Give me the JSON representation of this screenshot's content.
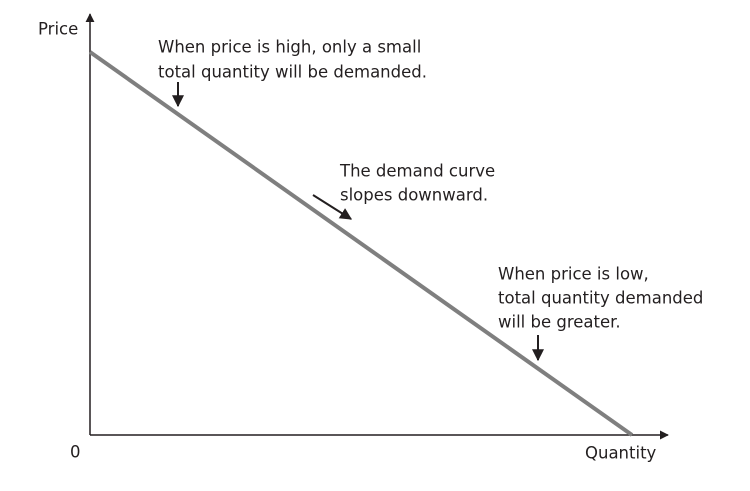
{
  "axes": {
    "y_label": "Price",
    "x_label": "Quantity",
    "origin": "0"
  },
  "annotations": [
    {
      "lines": [
        "When price is high, only a small",
        "total quantity will be demanded."
      ]
    },
    {
      "lines": [
        "The demand curve",
        "slopes downward."
      ]
    },
    {
      "lines": [
        "When price is low,",
        "total quantity demanded",
        "will be greater."
      ]
    }
  ]
}
